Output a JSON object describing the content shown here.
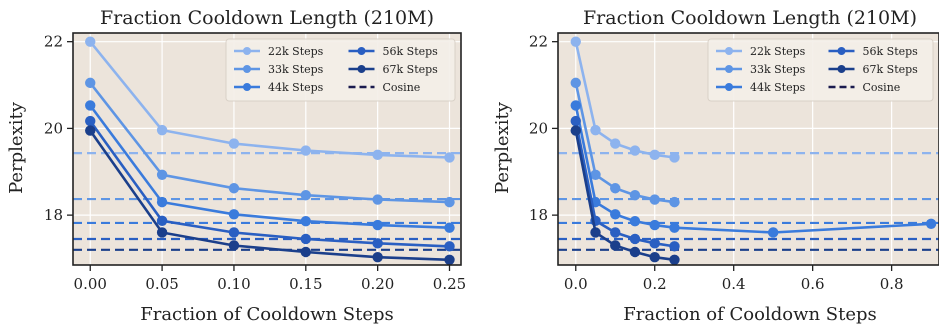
{
  "chart_data": [
    {
      "type": "line",
      "title": "Fraction Cooldown Length (210M)",
      "xlabel": "Fraction of Cooldown Steps",
      "ylabel": "Perplexity",
      "xlim": [
        -0.012,
        0.258
      ],
      "ylim": [
        16.85,
        22.2
      ],
      "xticks": [
        "0.00",
        "0.05",
        "0.10",
        "0.15",
        "0.20",
        "0.25"
      ],
      "xtick_values": [
        0,
        0.05,
        0.1,
        0.15,
        0.2,
        0.25
      ],
      "yticks": [
        "18",
        "20",
        "22"
      ],
      "ytick_values": [
        18,
        20,
        22
      ],
      "grid": true,
      "legend_position": "top-right",
      "series": [
        {
          "name": "22k Steps",
          "color": "#8db3ee",
          "x": [
            0,
            0.05,
            0.1,
            0.15,
            0.2,
            0.25
          ],
          "y": [
            22.0,
            19.96,
            19.65,
            19.49,
            19.39,
            19.33
          ],
          "cosine": 19.43
        },
        {
          "name": "33k Steps",
          "color": "#5e95e4",
          "x": [
            0,
            0.05,
            0.1,
            0.15,
            0.2,
            0.25
          ],
          "y": [
            21.05,
            18.93,
            18.62,
            18.46,
            18.36,
            18.3
          ],
          "cosine": 18.37
        },
        {
          "name": "44k Steps",
          "color": "#3a7bdc",
          "x": [
            0,
            0.05,
            0.1,
            0.15,
            0.2,
            0.25
          ],
          "y": [
            20.53,
            18.3,
            18.02,
            17.86,
            17.77,
            17.71
          ],
          "cosine": 17.82
        },
        {
          "name": "56k Steps",
          "color": "#2a5fc2",
          "x": [
            0,
            0.05,
            0.1,
            0.15,
            0.2,
            0.25
          ],
          "y": [
            20.17,
            17.87,
            17.6,
            17.45,
            17.35,
            17.28
          ],
          "cosine": 17.45
        },
        {
          "name": "67k Steps",
          "color": "#1b3f8b",
          "x": [
            0,
            0.05,
            0.1,
            0.15,
            0.2,
            0.25
          ],
          "y": [
            19.95,
            17.6,
            17.3,
            17.15,
            17.03,
            16.97
          ],
          "cosine": 17.2
        }
      ],
      "cosine_label": "Cosine",
      "cosine_color": "#1a1a4e",
      "background": "#ece4db"
    },
    {
      "type": "line",
      "title": "Fraction Cooldown Length (210M)",
      "xlabel": "Fraction of Cooldown Steps",
      "ylabel": "Perplexity",
      "xlim": [
        -0.045,
        0.92
      ],
      "ylim": [
        16.85,
        22.2
      ],
      "xticks": [
        "0.0",
        "0.2",
        "0.4",
        "0.6",
        "0.8"
      ],
      "xtick_values": [
        0,
        0.2,
        0.4,
        0.6,
        0.8
      ],
      "yticks": [
        "18",
        "20",
        "22"
      ],
      "ytick_values": [
        18,
        20,
        22
      ],
      "grid": true,
      "legend_position": "top-right",
      "series": [
        {
          "name": "22k Steps",
          "color": "#8db3ee",
          "x": [
            0,
            0.05,
            0.1,
            0.15,
            0.2,
            0.25
          ],
          "y": [
            22.0,
            19.96,
            19.65,
            19.49,
            19.39,
            19.33
          ],
          "cosine": 19.43
        },
        {
          "name": "33k Steps",
          "color": "#5e95e4",
          "x": [
            0,
            0.05,
            0.1,
            0.15,
            0.2,
            0.25
          ],
          "y": [
            21.05,
            18.93,
            18.62,
            18.46,
            18.36,
            18.3
          ],
          "cosine": 18.37
        },
        {
          "name": "44k Steps",
          "color": "#3a7bdc",
          "x": [
            0,
            0.05,
            0.1,
            0.15,
            0.2,
            0.25,
            0.5,
            0.9
          ],
          "y": [
            20.53,
            18.3,
            18.02,
            17.86,
            17.77,
            17.71,
            17.6,
            17.8
          ],
          "cosine": 17.82
        },
        {
          "name": "56k Steps",
          "color": "#2a5fc2",
          "x": [
            0,
            0.05,
            0.1,
            0.15,
            0.2,
            0.25
          ],
          "y": [
            20.17,
            17.87,
            17.6,
            17.45,
            17.35,
            17.28
          ],
          "cosine": 17.45
        },
        {
          "name": "67k Steps",
          "color": "#1b3f8b",
          "x": [
            0,
            0.05,
            0.1,
            0.15,
            0.2,
            0.25
          ],
          "y": [
            19.95,
            17.6,
            17.3,
            17.15,
            17.03,
            16.97
          ],
          "cosine": 17.2
        }
      ],
      "cosine_label": "Cosine",
      "cosine_color": "#1a1a4e",
      "background": "#ece4db"
    }
  ]
}
